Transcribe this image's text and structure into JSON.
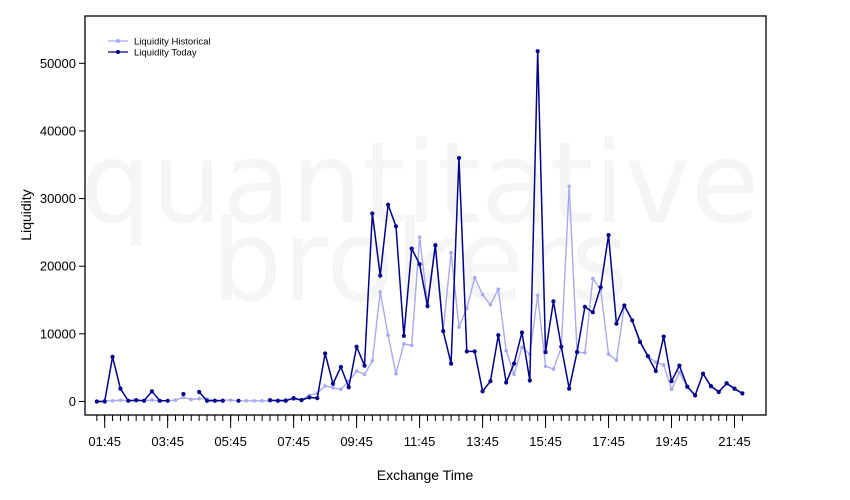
{
  "watermark": {
    "line1": "quantitative",
    "line2": "brokers"
  },
  "chart_data": {
    "type": "line",
    "title": "",
    "xlabel": "Exchange Time",
    "ylabel": "Liquidity",
    "x_ticks": [
      "01:45",
      "03:45",
      "05:45",
      "07:45",
      "09:45",
      "11:45",
      "13:45",
      "15:45",
      "17:45",
      "19:45",
      "21:45"
    ],
    "x_tick_index": [
      1,
      9,
      17,
      25,
      33,
      41,
      49,
      57,
      65,
      73,
      81
    ],
    "y_ticks": [
      0,
      10000,
      20000,
      30000,
      40000,
      50000
    ],
    "ylim": [
      -2000,
      57000
    ],
    "xlim": [
      -1.5,
      85
    ],
    "grid": false,
    "legend_position": "top-left",
    "interval": "15 min",
    "x_start": "01:30",
    "series": [
      {
        "name": "Liquidity Historical",
        "color": "#a9a9f0",
        "values": [
          0,
          100,
          100,
          200,
          150,
          100,
          150,
          200,
          100,
          100,
          200,
          600,
          300,
          400,
          400,
          200,
          200,
          200,
          100,
          100,
          100,
          100,
          100,
          200,
          300,
          300,
          300,
          900,
          1200,
          2300,
          2000,
          1800,
          3000,
          4500,
          4000,
          6000,
          16200,
          9800,
          4100,
          8500,
          8300,
          24300,
          14500,
          23200,
          10500,
          22000,
          11000,
          13800,
          18300,
          15800,
          14300,
          16600,
          7500,
          4000,
          8000,
          7000,
          15700,
          5200,
          4800,
          8000,
          31800,
          7300,
          7200,
          18200,
          16500,
          7000,
          6100,
          14100,
          12000,
          9000,
          6700,
          5800,
          5400,
          1800,
          4300,
          2100,
          1000,
          4100,
          2100,
          1500,
          2600,
          1800,
          1200
        ]
      },
      {
        "name": "Liquidity Today",
        "color": "#00008b",
        "values": [
          0,
          0,
          6600,
          1900,
          100,
          200,
          100,
          1500,
          100,
          100,
          null,
          1100,
          null,
          1400,
          100,
          100,
          100,
          null,
          100,
          null,
          null,
          null,
          200,
          100,
          100,
          500,
          200,
          600,
          500,
          7100,
          2600,
          5100,
          2100,
          8100,
          5300,
          27800,
          18600,
          29100,
          25900,
          9700,
          22600,
          20300,
          14100,
          23100,
          10400,
          5600,
          36000,
          7400,
          7400,
          1500,
          3000,
          9800,
          2800,
          5600,
          10200,
          3100,
          51800,
          7300,
          14800,
          8100,
          1900,
          7300,
          14000,
          13200,
          16900,
          24600,
          11500,
          14200,
          12000,
          8800,
          6700,
          4500,
          9600,
          3000,
          5300,
          2200,
          900,
          4100,
          2300,
          1400,
          2700,
          1900,
          1200
        ]
      }
    ]
  }
}
